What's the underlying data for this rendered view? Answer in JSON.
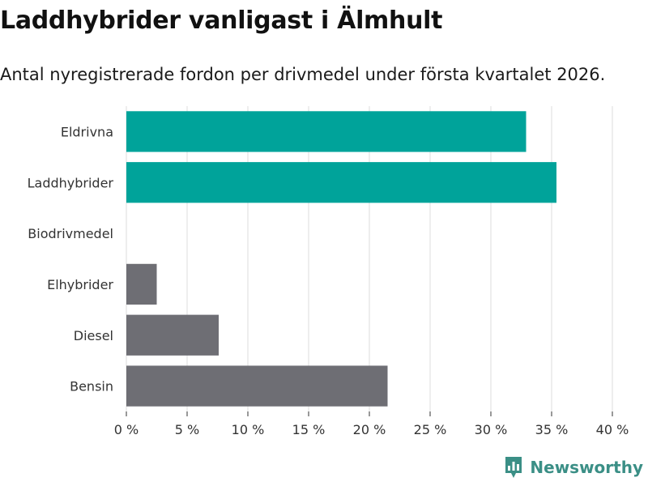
{
  "chart_data": {
    "type": "bar",
    "orientation": "horizontal",
    "title": "Laddhybrider vanligast i Älmhult",
    "subtitle": "Antal nyregistrerade fordon per drivmedel under första kvartalet 2026.",
    "categories": [
      "Eldrivna",
      "Laddhybrider",
      "Biodrivmedel",
      "Elhybrider",
      "Diesel",
      "Bensin"
    ],
    "values": [
      32.9,
      35.4,
      0,
      2.5,
      7.6,
      21.5
    ],
    "colors": [
      "#00a39a",
      "#00a39a",
      "#6e6e74",
      "#6e6e74",
      "#6e6e74",
      "#6e6e74"
    ],
    "xlim": [
      0,
      40
    ],
    "xticks": [
      0,
      5,
      10,
      15,
      20,
      25,
      30,
      35,
      40
    ],
    "tick_suffix": " %",
    "grid": true
  },
  "brand": {
    "name": "Newsworthy",
    "color": "#3b8f86"
  }
}
